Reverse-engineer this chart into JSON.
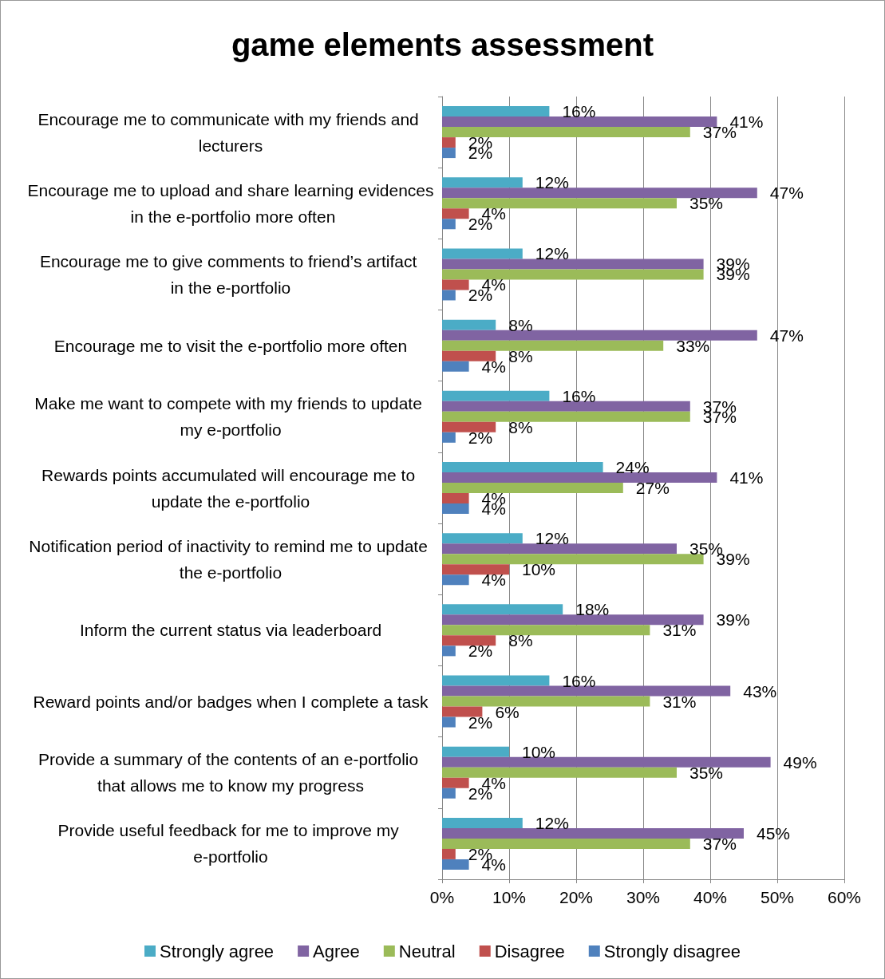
{
  "chart_data": {
    "type": "bar",
    "orientation": "horizontal",
    "title": "game elements assessment",
    "categories": [
      "Encourage me to communicate with my friends and lecturers",
      "Encourage me to upload and share learning evidences in the e-portfolio more often",
      "Encourage me to give comments to friend’s artifact in the e-portfolio",
      "Encourage me to visit the e-portfolio more often",
      "Make me want to compete with my friends to update my e-portfolio",
      "Rewards points accumulated will encourage me to update the e-portfolio",
      "Notification period of inactivity to remind me to update the e-portfolio",
      "Inform the current status via leaderboard",
      "Reward points and/or badges when I complete a task",
      "Provide a summary of the contents of an e-portfolio that allows me to know my progress",
      "Provide useful feedback for me to improve my e-portfolio"
    ],
    "series": [
      {
        "name": "Strongly agree",
        "color": "#4bacc6",
        "values": [
          16,
          12,
          12,
          8,
          16,
          24,
          12,
          18,
          16,
          10,
          12
        ],
        "value_labels": [
          "16%",
          "12%",
          "12%",
          "8%",
          "16%",
          "24%",
          "12%",
          "18%",
          "16%",
          "10%",
          "12%"
        ]
      },
      {
        "name": "Agree",
        "color": "#8064a2",
        "values": [
          41,
          47,
          39,
          47,
          37,
          41,
          35,
          39,
          43,
          49,
          45
        ],
        "value_labels": [
          "41%",
          "47%",
          "39%",
          "47%",
          "37%",
          "41%",
          "35%",
          "39%",
          "43%",
          "49%",
          "45%"
        ]
      },
      {
        "name": "Neutral",
        "color": "#9bbb59",
        "values": [
          37,
          35,
          39,
          33,
          37,
          27,
          39,
          31,
          31,
          35,
          37
        ],
        "value_labels": [
          "37%",
          "35%",
          "39%",
          "33%",
          "37%",
          "27%",
          "39%",
          "31%",
          "31%",
          "35%",
          "37%"
        ]
      },
      {
        "name": "Disagree",
        "color": "#c0504d",
        "values": [
          2,
          4,
          4,
          8,
          8,
          4,
          10,
          8,
          6,
          4,
          2
        ],
        "value_labels": [
          "2%",
          "4%",
          "4%",
          "8%",
          "8%",
          "4%",
          "10%",
          "8%",
          "6%",
          "4%",
          "2%"
        ]
      },
      {
        "name": "Strongly disagree",
        "color": "#4f81bd",
        "values": [
          2,
          2,
          2,
          4,
          2,
          4,
          4,
          2,
          2,
          2,
          4
        ],
        "value_labels": [
          "2%",
          "2%",
          "2%",
          "4%",
          "2%",
          "4%",
          "4%",
          "2%",
          "2%",
          "2%",
          "4%"
        ]
      }
    ],
    "xlim": [
      0,
      60
    ],
    "xticks": [
      {
        "value": 0,
        "label": "0%"
      },
      {
        "value": 10,
        "label": "10%"
      },
      {
        "value": 20,
        "label": "20%"
      },
      {
        "value": 30,
        "label": "30%"
      },
      {
        "value": 40,
        "label": "40%"
      },
      {
        "value": 50,
        "label": "50%"
      },
      {
        "value": 60,
        "label": "60%"
      }
    ],
    "grid": "x",
    "legend": "bottom"
  }
}
